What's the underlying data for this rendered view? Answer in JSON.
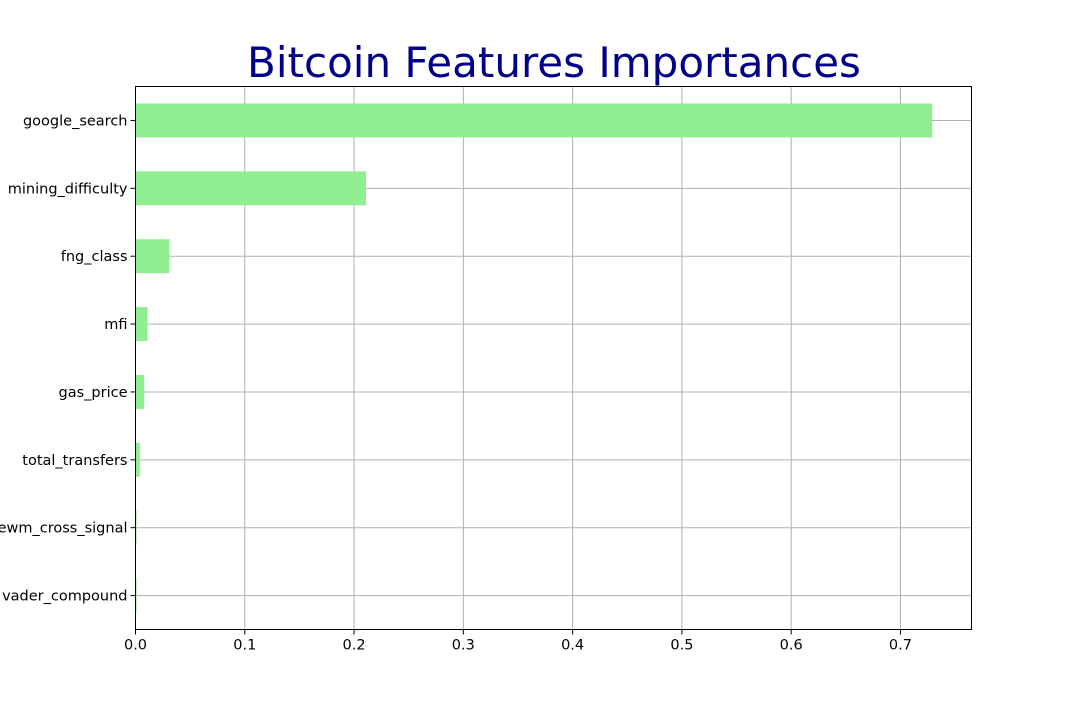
{
  "chart_data": {
    "type": "bar",
    "orientation": "horizontal",
    "title": "Bitcoin Features Importances",
    "xlabel": "",
    "ylabel": "",
    "categories": [
      "google_search",
      "mining_difficulty",
      "fng_class",
      "mfi",
      "gas_price",
      "total_transfers",
      "ewm_cross_signal",
      "vader_compound"
    ],
    "values": [
      0.729,
      0.211,
      0.031,
      0.011,
      0.008,
      0.004,
      0.001,
      0.001
    ],
    "xlim": [
      0,
      0.765
    ],
    "xticks": [
      "0.0",
      "0.1",
      "0.2",
      "0.3",
      "0.4",
      "0.5",
      "0.6",
      "0.7"
    ],
    "grid": true,
    "legend": "none",
    "colors": {
      "bar": "#90ee90",
      "title": "#00008b",
      "grid": "#b0b0b0",
      "axis": "#000000"
    }
  }
}
